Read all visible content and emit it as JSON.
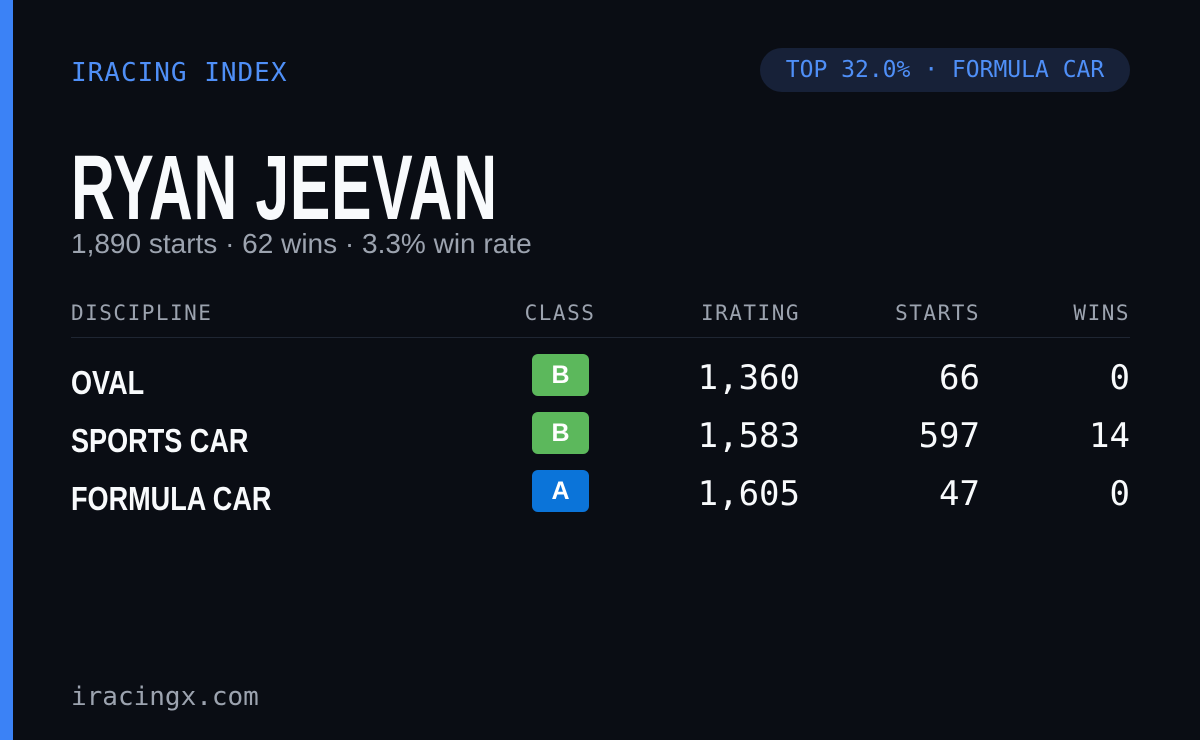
{
  "header": {
    "brand": "IRACING INDEX",
    "badge": "TOP 32.0% · FORMULA CAR"
  },
  "driver": {
    "name": "RYAN JEEVAN",
    "summary": "1,890 starts · 62 wins · 3.3% win rate"
  },
  "table": {
    "columns": [
      "DISCIPLINE",
      "CLASS",
      "IRATING",
      "STARTS",
      "WINS"
    ],
    "rows": [
      [
        "OVAL",
        "B",
        "1,360",
        "66",
        "0"
      ],
      [
        "SPORTS CAR",
        "B",
        "1,583",
        "597",
        "14"
      ],
      [
        "FORMULA CAR",
        "A",
        "1,605",
        "47",
        "0"
      ]
    ]
  },
  "footer": {
    "site": "iracingx.com"
  }
}
